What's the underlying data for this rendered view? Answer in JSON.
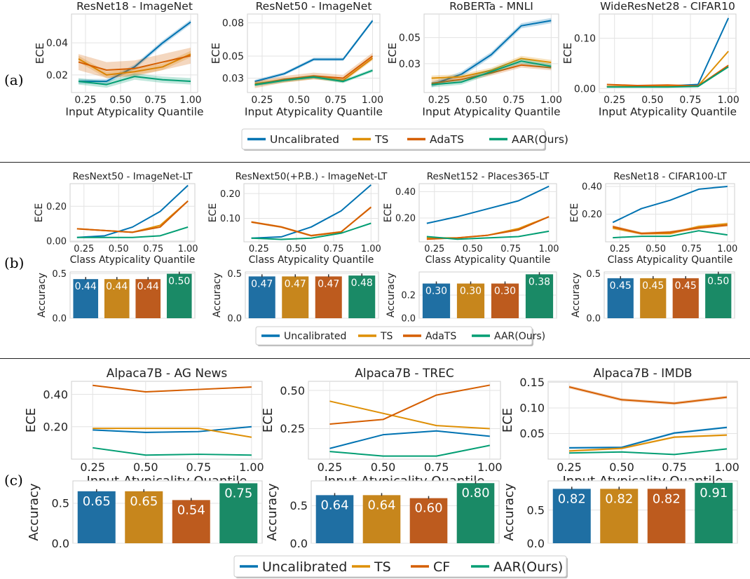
{
  "row_labels": {
    "a": "(a)",
    "b": "(b)",
    "c": "(c)"
  },
  "colors": {
    "Uncalibrated": "#0173b2",
    "TS": "#de8f05",
    "AdaTS": "#d55e00",
    "CF": "#d55e00",
    "AAR(Ours)": "#029e73"
  },
  "bar_colors": [
    "#1f6fa3",
    "#c7861c",
    "#bd5b1e",
    "#1a8a66"
  ],
  "legends": {
    "a": [
      "Uncalibrated",
      "TS",
      "AdaTS",
      "AAR(Ours)"
    ],
    "b": [
      "Uncalibrated",
      "TS",
      "AdaTS",
      "AAR(Ours)"
    ],
    "c": [
      "Uncalibrated",
      "TS",
      "CF",
      "AAR(Ours)"
    ]
  },
  "chart_data": [
    {
      "type": "line",
      "row": "a",
      "title": "ResNet18 - ImageNet",
      "xlabel": "Input Atypicality Quantile",
      "ylabel": "ECE",
      "x": [
        0.2,
        0.4,
        0.6,
        0.8,
        1.0
      ],
      "xticks": [
        0.25,
        0.5,
        0.75,
        1.0
      ],
      "xticklabels": [
        "0.25",
        "0.50",
        "0.75",
        "1.00"
      ],
      "ylim": [
        0.009,
        0.058
      ],
      "yticks": [
        0.02,
        0.04
      ],
      "yticklabels": [
        "0.02",
        "0.04"
      ],
      "series": [
        {
          "name": "Uncalibrated",
          "values": [
            0.016,
            0.016,
            0.025,
            0.04,
            0.053
          ],
          "band": 0.0015
        },
        {
          "name": "TS",
          "values": [
            0.03,
            0.02,
            0.022,
            0.025,
            0.033
          ],
          "band": 0.002
        },
        {
          "name": "AdaTS",
          "values": [
            0.028,
            0.023,
            0.024,
            0.028,
            0.032
          ],
          "band": 0.005
        },
        {
          "name": "AAR(Ours)",
          "values": [
            0.016,
            0.014,
            0.019,
            0.017,
            0.016
          ],
          "band": 0.002
        }
      ]
    },
    {
      "type": "line",
      "row": "a",
      "title": "ResNet50 - ImageNet",
      "xlabel": "Input Atypicality Quantile",
      "ylabel": "ECE",
      "x": [
        0.2,
        0.4,
        0.6,
        0.8,
        1.0
      ],
      "xticks": [
        0.25,
        0.5,
        0.75,
        1.0
      ],
      "xticklabels": [
        "0.25",
        "0.50",
        "0.75",
        "1.00"
      ],
      "ylim": [
        0.017,
        0.088
      ],
      "yticks": [
        0.03,
        0.05,
        0.08
      ],
      "yticklabels": [
        "0.03",
        "0.05",
        "0.08"
      ],
      "series": [
        {
          "name": "Uncalibrated",
          "values": [
            0.027,
            0.034,
            0.047,
            0.047,
            0.082
          ],
          "band": 0.0015
        },
        {
          "name": "TS",
          "values": [
            0.025,
            0.028,
            0.031,
            0.028,
            0.048
          ],
          "band": 0.002
        },
        {
          "name": "AdaTS",
          "values": [
            0.024,
            0.029,
            0.032,
            0.03,
            0.05
          ],
          "band": 0.003
        },
        {
          "name": "AAR(Ours)",
          "values": [
            0.024,
            0.028,
            0.031,
            0.027,
            0.037
          ],
          "band": 0.0015
        }
      ]
    },
    {
      "type": "line",
      "row": "a",
      "title": "RoBERTa - MNLI",
      "xlabel": "Input Atypicality Quantile",
      "ylabel": "ECE",
      "x": [
        0.2,
        0.4,
        0.6,
        0.8,
        1.0
      ],
      "xticks": [
        0.25,
        0.5,
        0.75,
        1.0
      ],
      "xticklabels": [
        "0.25",
        "0.50",
        "0.75",
        "1.00"
      ],
      "ylim": [
        0.008,
        0.068
      ],
      "yticks": [
        0.03,
        0.05
      ],
      "yticklabels": [
        "0.03",
        "0.05"
      ],
      "series": [
        {
          "name": "Uncalibrated",
          "values": [
            0.014,
            0.022,
            0.037,
            0.059,
            0.063
          ],
          "band": 0.002
        },
        {
          "name": "TS",
          "values": [
            0.019,
            0.02,
            0.025,
            0.034,
            0.031
          ],
          "band": 0.002
        },
        {
          "name": "AdaTS",
          "values": [
            0.015,
            0.018,
            0.023,
            0.029,
            0.027
          ],
          "band": 0.002
        },
        {
          "name": "AAR(Ours)",
          "values": [
            0.014,
            0.016,
            0.024,
            0.032,
            0.028
          ],
          "band": 0.002
        }
      ]
    },
    {
      "type": "line",
      "row": "a",
      "title": "WideResNet28 - CIFAR10",
      "xlabel": "Input Atypicality Quantile",
      "ylabel": "ECE",
      "x": [
        0.2,
        0.4,
        0.6,
        0.8,
        1.0
      ],
      "xticks": [
        0.25,
        0.5,
        0.75,
        1.0
      ],
      "xticklabels": [
        "0.25",
        "0.50",
        "0.75",
        "1.00"
      ],
      "ylim": [
        -0.008,
        0.148
      ],
      "yticks": [
        0.0,
        0.1
      ],
      "yticklabels": [
        "0.00",
        "0.10"
      ],
      "series": [
        {
          "name": "Uncalibrated",
          "values": [
            0.004,
            0.004,
            0.005,
            0.008,
            0.14
          ],
          "band": 0.001
        },
        {
          "name": "TS",
          "values": [
            0.004,
            0.004,
            0.005,
            0.005,
            0.074
          ],
          "band": 0.001
        },
        {
          "name": "AdaTS",
          "values": [
            0.008,
            0.006,
            0.007,
            0.005,
            0.046
          ],
          "band": 0.001
        },
        {
          "name": "AAR(Ours)",
          "values": [
            0.003,
            0.003,
            0.003,
            0.004,
            0.043
          ],
          "band": 0.001
        }
      ]
    },
    {
      "type": "line",
      "row": "b",
      "title": "ResNext50 - ImageNet-LT",
      "xlabel": "Class Atypicality Quantile",
      "ylabel": "ECE",
      "x": [
        0.2,
        0.4,
        0.6,
        0.8,
        1.0
      ],
      "xticks": [
        0.25,
        0.5,
        0.75,
        1.0
      ],
      "xticklabels": [
        "0.25",
        "0.50",
        "0.75",
        "1.00"
      ],
      "ylim": [
        -0.005,
        0.33
      ],
      "yticks": [
        0.0,
        0.2
      ],
      "yticklabels": [
        "0.00",
        "0.20"
      ],
      "series": [
        {
          "name": "Uncalibrated",
          "values": [
            0.02,
            0.03,
            0.08,
            0.17,
            0.32
          ],
          "band": 0.002
        },
        {
          "name": "TS",
          "values": [
            0.07,
            0.06,
            0.05,
            0.09,
            0.23
          ],
          "band": 0.004
        },
        {
          "name": "AdaTS",
          "values": [
            0.07,
            0.06,
            0.05,
            0.08,
            0.23
          ],
          "band": 0.004
        },
        {
          "name": "AAR(Ours)",
          "values": [
            0.02,
            0.02,
            0.02,
            0.03,
            0.08
          ],
          "band": 0.002
        }
      ]
    },
    {
      "type": "line",
      "row": "b",
      "title": "ResNext50(+P.B.) - ImageNet-LT",
      "xlabel": "Class Atypicality Quantile",
      "ylabel": "ECE",
      "x": [
        0.2,
        0.4,
        0.6,
        0.8,
        1.0
      ],
      "xticks": [
        0.25,
        0.5,
        0.75,
        1.0
      ],
      "xticklabels": [
        "0.25",
        "0.50",
        "0.75",
        "1.00"
      ],
      "ylim": [
        0.005,
        0.24
      ],
      "yticks": [
        0.1,
        0.2
      ],
      "yticklabels": [
        "0.10",
        "0.20"
      ],
      "series": [
        {
          "name": "Uncalibrated",
          "values": [
            0.02,
            0.025,
            0.065,
            0.13,
            0.235
          ],
          "band": 0.002
        },
        {
          "name": "TS",
          "values": [
            0.085,
            0.065,
            0.03,
            0.045,
            0.145
          ],
          "band": 0.004
        },
        {
          "name": "AdaTS",
          "values": [
            0.085,
            0.065,
            0.03,
            0.045,
            0.145
          ],
          "band": 0.004
        },
        {
          "name": "AAR(Ours)",
          "values": [
            0.02,
            0.015,
            0.02,
            0.04,
            0.08
          ],
          "band": 0.002
        }
      ]
    },
    {
      "type": "line",
      "row": "b",
      "title": "ResNet152 - Places365-LT",
      "xlabel": "Class Atypicality Quantile",
      "ylabel": "ECE",
      "x": [
        0.2,
        0.4,
        0.6,
        0.8,
        1.0
      ],
      "xticks": [
        0.25,
        0.5,
        0.75,
        1.0
      ],
      "xticklabels": [
        "0.25",
        "0.50",
        "0.75",
        "1.00"
      ],
      "ylim": [
        0.02,
        0.46
      ],
      "yticks": [
        0.2,
        0.4
      ],
      "yticklabels": [
        "0.20",
        "0.40"
      ],
      "series": [
        {
          "name": "Uncalibrated",
          "values": [
            0.16,
            0.21,
            0.27,
            0.33,
            0.44
          ],
          "band": 0.002
        },
        {
          "name": "TS",
          "values": [
            0.05,
            0.05,
            0.07,
            0.12,
            0.21
          ],
          "band": 0.004
        },
        {
          "name": "AdaTS",
          "values": [
            0.04,
            0.05,
            0.07,
            0.11,
            0.21
          ],
          "band": 0.004
        },
        {
          "name": "AAR(Ours)",
          "values": [
            0.06,
            0.04,
            0.05,
            0.06,
            0.1
          ],
          "band": 0.002
        }
      ]
    },
    {
      "type": "line",
      "row": "b",
      "title": "ResNet18 - CIFAR100-LT",
      "xlabel": "Class Atypicality Quantile",
      "ylabel": "ECE",
      "x": [
        0.2,
        0.4,
        0.6,
        0.8,
        1.0
      ],
      "xticks": [
        0.25,
        0.5,
        0.75,
        1.0
      ],
      "xticklabels": [
        "0.25",
        "0.50",
        "0.75",
        "1.00"
      ],
      "ylim": [
        0.0,
        0.42
      ],
      "yticks": [
        0.2,
        0.4
      ],
      "yticklabels": [
        "0.20",
        "0.40"
      ],
      "series": [
        {
          "name": "Uncalibrated",
          "values": [
            0.14,
            0.24,
            0.3,
            0.38,
            0.4
          ],
          "band": 0.002
        },
        {
          "name": "TS",
          "values": [
            0.1,
            0.06,
            0.06,
            0.11,
            0.13
          ],
          "band": 0.01
        },
        {
          "name": "AdaTS",
          "values": [
            0.11,
            0.06,
            0.07,
            0.1,
            0.12
          ],
          "band": 0.01
        },
        {
          "name": "AAR(Ours)",
          "values": [
            0.03,
            0.04,
            0.04,
            0.08,
            0.05
          ],
          "band": 0.002
        }
      ]
    },
    {
      "type": "bar",
      "row": "b",
      "ylabel": "Accuracy",
      "categories": [
        "Uncalibrated",
        "TS",
        "AdaTS",
        "AAR(Ours)"
      ],
      "values": [
        0.44,
        0.44,
        0.44,
        0.5
      ],
      "labels": [
        "0.44",
        "0.44",
        "0.44",
        "0.50"
      ],
      "ylim": [
        0,
        0.52
      ],
      "yticks": [
        0,
        0.5
      ],
      "yticklabels": [
        "0.0",
        "0.5"
      ]
    },
    {
      "type": "bar",
      "row": "b",
      "ylabel": "Accuracy",
      "categories": [
        "Uncalibrated",
        "TS",
        "AdaTS",
        "AAR(Ours)"
      ],
      "values": [
        0.47,
        0.47,
        0.47,
        0.48
      ],
      "labels": [
        "0.47",
        "0.47",
        "0.47",
        "0.48"
      ],
      "ylim": [
        0,
        0.52
      ],
      "yticks": [
        0,
        0.5
      ],
      "yticklabels": [
        "0.0",
        "0.5"
      ]
    },
    {
      "type": "bar",
      "row": "b",
      "ylabel": "Accuracy",
      "categories": [
        "Uncalibrated",
        "TS",
        "AdaTS",
        "AAR(Ours)"
      ],
      "values": [
        0.3,
        0.3,
        0.3,
        0.38
      ],
      "labels": [
        "0.30",
        "0.30",
        "0.30",
        "0.38"
      ],
      "ylim": [
        0,
        0.4
      ],
      "yticks": [
        0,
        0.2
      ],
      "yticklabels": [
        "0.0",
        "0.2"
      ]
    },
    {
      "type": "bar",
      "row": "b",
      "ylabel": "Accuracy",
      "categories": [
        "Uncalibrated",
        "TS",
        "AdaTS",
        "AAR(Ours)"
      ],
      "values": [
        0.45,
        0.45,
        0.45,
        0.5
      ],
      "labels": [
        "0.45",
        "0.45",
        "0.45",
        "0.50"
      ],
      "ylim": [
        0,
        0.52
      ],
      "yticks": [
        0,
        0.5
      ],
      "yticklabels": [
        "0.0",
        "0.5"
      ]
    },
    {
      "type": "line",
      "row": "c",
      "title": "Alpaca7B - AG News",
      "xlabel": "Input Atypicality Quantile",
      "ylabel": "ECE",
      "x": [
        0.25,
        0.5,
        0.75,
        1.0
      ],
      "xticks": [
        0.25,
        0.5,
        0.75,
        1.0
      ],
      "xticklabels": [
        "0.25",
        "0.50",
        "0.75",
        "1.00"
      ],
      "ylim": [
        0.0,
        0.48
      ],
      "yticks": [
        0.2,
        0.4
      ],
      "yticklabels": [
        "0.20",
        "0.40"
      ],
      "series": [
        {
          "name": "Uncalibrated",
          "values": [
            0.18,
            0.165,
            0.17,
            0.2
          ],
          "band": 0.004
        },
        {
          "name": "TS",
          "values": [
            0.19,
            0.19,
            0.19,
            0.135
          ],
          "band": 0.003
        },
        {
          "name": "CF",
          "values": [
            0.455,
            0.415,
            0.43,
            0.445
          ],
          "band": 0.004
        },
        {
          "name": "AAR(Ours)",
          "values": [
            0.07,
            0.025,
            0.03,
            0.025
          ],
          "band": 0.002
        }
      ]
    },
    {
      "type": "line",
      "row": "c",
      "title": "Alpaca7B - TREC",
      "xlabel": "Input Atypicality Quantile",
      "ylabel": "ECE",
      "x": [
        0.25,
        0.5,
        0.75,
        1.0
      ],
      "xticks": [
        0.25,
        0.5,
        0.75,
        1.0
      ],
      "xticklabels": [
        "0.25",
        "0.50",
        "0.75",
        "1.00"
      ],
      "ylim": [
        0.05,
        0.56
      ],
      "yticks": [
        0.25,
        0.5
      ],
      "yticklabels": [
        "0.25",
        "0.50"
      ],
      "series": [
        {
          "name": "Uncalibrated",
          "values": [
            0.12,
            0.21,
            0.235,
            0.2
          ],
          "band": 0.004
        },
        {
          "name": "TS",
          "values": [
            0.43,
            0.35,
            0.27,
            0.25
          ],
          "band": 0.003
        },
        {
          "name": "CF",
          "values": [
            0.28,
            0.31,
            0.47,
            0.535
          ],
          "band": 0.004
        },
        {
          "name": "AAR(Ours)",
          "values": [
            0.1,
            0.07,
            0.07,
            0.14
          ],
          "band": 0.002
        }
      ]
    },
    {
      "type": "line",
      "row": "c",
      "title": "Alpaca7B - IMDB",
      "xlabel": "Input Atypicality Quantile",
      "ylabel": "ECE",
      "x": [
        0.25,
        0.5,
        0.75,
        1.0
      ],
      "xticks": [
        0.25,
        0.5,
        0.75,
        1.0
      ],
      "xticklabels": [
        "0.25",
        "0.50",
        "0.75",
        "1.00"
      ],
      "ylim": [
        0.0,
        0.152
      ],
      "yticks": [
        0.05,
        0.1,
        0.15
      ],
      "yticklabels": [
        "0.05",
        "0.10",
        "0.15"
      ],
      "series": [
        {
          "name": "Uncalibrated",
          "values": [
            0.022,
            0.023,
            0.051,
            0.062
          ],
          "band": 0.002
        },
        {
          "name": "TS",
          "values": [
            0.016,
            0.021,
            0.043,
            0.047
          ],
          "band": 0.002
        },
        {
          "name": "CF",
          "values": [
            0.141,
            0.116,
            0.109,
            0.121
          ],
          "band": 0.003
        },
        {
          "name": "AAR(Ours)",
          "values": [
            0.012,
            0.014,
            0.009,
            0.02
          ],
          "band": 0.001
        }
      ]
    },
    {
      "type": "bar",
      "row": "c",
      "ylabel": "Accuracy",
      "categories": [
        "Uncalibrated",
        "TS",
        "CF",
        "AAR(Ours)"
      ],
      "values": [
        0.65,
        0.65,
        0.54,
        0.75
      ],
      "labels": [
        "0.65",
        "0.65",
        "0.54",
        "0.75"
      ],
      "ylim": [
        0,
        0.78
      ],
      "yticks": [
        0,
        0.5
      ],
      "yticklabels": [
        "0.0",
        "0.5"
      ]
    },
    {
      "type": "bar",
      "row": "c",
      "ylabel": "Accuracy",
      "categories": [
        "Uncalibrated",
        "TS",
        "CF",
        "AAR(Ours)"
      ],
      "values": [
        0.64,
        0.64,
        0.6,
        0.8
      ],
      "labels": [
        "0.64",
        "0.64",
        "0.60",
        "0.80"
      ],
      "ylim": [
        0,
        0.83
      ],
      "yticks": [
        0,
        0.5
      ],
      "yticklabels": [
        "0.0",
        "0.5"
      ]
    },
    {
      "type": "bar",
      "row": "c",
      "ylabel": "Accuracy",
      "categories": [
        "Uncalibrated",
        "TS",
        "CF",
        "AAR(Ours)"
      ],
      "values": [
        0.82,
        0.82,
        0.82,
        0.91
      ],
      "labels": [
        "0.82",
        "0.82",
        "0.82",
        "0.91"
      ],
      "ylim": [
        0,
        0.94
      ],
      "yticks": [
        0,
        0.5
      ],
      "yticklabels": [
        "0.0",
        "0.5"
      ]
    }
  ]
}
